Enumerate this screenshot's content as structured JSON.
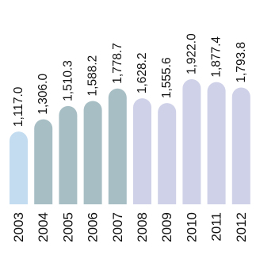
{
  "chart_data": {
    "type": "bar",
    "title": "",
    "xlabel": "",
    "ylabel": "",
    "categories": [
      "2003",
      "2004",
      "2005",
      "2006",
      "2007",
      "2008",
      "2009",
      "2010",
      "2011",
      "2012"
    ],
    "values": [
      1117.0,
      1306.0,
      1510.3,
      1588.2,
      1778.7,
      1628.2,
      1555.6,
      1922.0,
      1877.4,
      1793.8
    ],
    "value_labels": [
      "1,117.0",
      "1,306.0",
      "1,510.3",
      "1,588.2",
      "1,778.7",
      "1,628.2",
      "1,555.6",
      "1,922.0",
      "1,877.4",
      "1,793.8"
    ],
    "ylim": [
      0,
      1922.0
    ],
    "grid": false,
    "legend": "none",
    "bar_colors": [
      "#c3dcef",
      "#a7bec5",
      "#a7bec5",
      "#a7bec5",
      "#a7bec5",
      "#cfd1e8",
      "#cfd1e8",
      "#cfd1e8",
      "#cfd1e8",
      "#cfd1e8"
    ]
  }
}
